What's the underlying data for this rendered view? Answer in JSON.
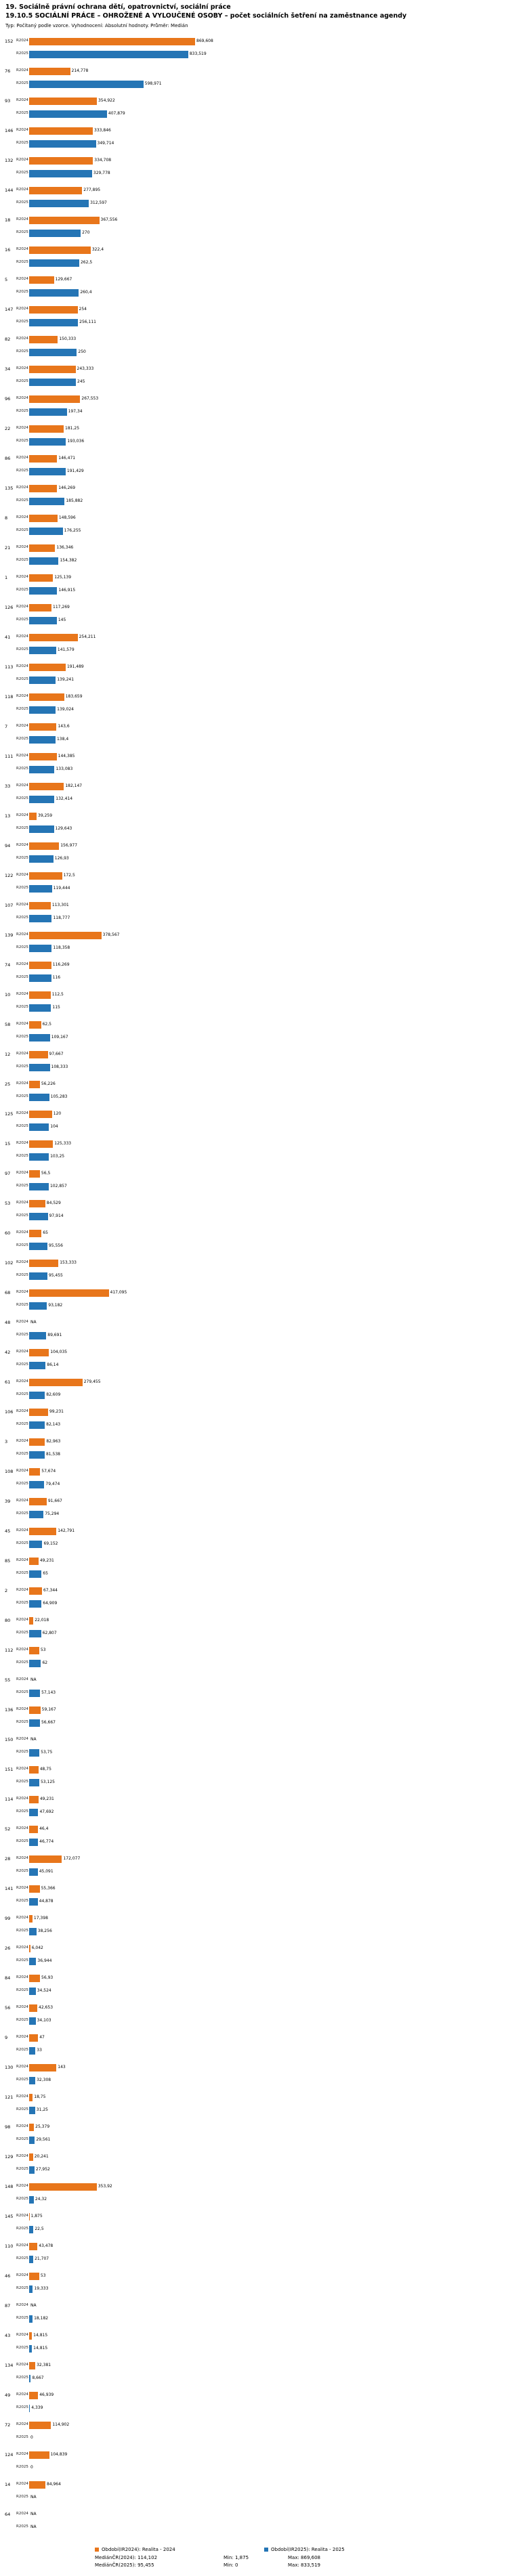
{
  "header": {
    "title": "19. Sociálně právní ochrana dětí, opatrovnictví, sociální práce",
    "subtitle": "19.10.5 SOCIÁLNÍ PRÁCE – OHROŽENÉ A VYLOUČENÉ OSOBY – počet sociálních šetření na zaměstnance agendy",
    "meta": "Typ: Počítaný podle vzorce. Vyhodnocení: Absolutní hodnoty. Průměr: Medián"
  },
  "legend": {
    "r2024": "Období(IR2024): Realita - 2024",
    "r2025": "Období(IR2025): Realita - 2025"
  },
  "footer": {
    "median_2024": "MediánČR(2024): 114,102",
    "median_2025": "MediánČR(2025): 95,455",
    "min_2024": "Min: 1,875",
    "max_2024": "Max: 869,608",
    "min_2025": "Min: 0",
    "max_2025": "Max: 833,519"
  },
  "chart_data": {
    "type": "bar",
    "orientation": "horizontal",
    "title": "19.10.5 SOCIÁLNÍ PRÁCE – OHROŽENÉ A VYLOUČENÉ OSOBY – počet sociálních šetření na zaměstnance agendy",
    "sort": "R2025 descending, NA last",
    "legend_position": "bottom",
    "xlim": [
      0,
      880
    ],
    "null_display": "NA",
    "categories": [
      "152",
      "76",
      "93",
      "146",
      "132",
      "144",
      "18",
      "16",
      "5",
      "147",
      "82",
      "34",
      "96",
      "22",
      "86",
      "135",
      "8",
      "21",
      "1",
      "126",
      "41",
      "113",
      "118",
      "7",
      "111",
      "33",
      "13",
      "94",
      "122",
      "107",
      "139",
      "74",
      "10",
      "58",
      "12",
      "25",
      "125",
      "15",
      "97",
      "53",
      "60",
      "102",
      "68",
      "48",
      "42",
      "61",
      "106",
      "3",
      "108",
      "39",
      "45",
      "85",
      "2",
      "80",
      "112",
      "55",
      "136",
      "150",
      "151",
      "114",
      "52",
      "28",
      "141",
      "99",
      "26",
      "84",
      "56",
      "9",
      "130",
      "121",
      "98",
      "129",
      "148",
      "145",
      "110",
      "46",
      "87",
      "43",
      "134",
      "49",
      "72",
      "124",
      "14",
      "64"
    ],
    "series": [
      {
        "key": "R2024",
        "name": "Období(IR2024): Realita - 2024",
        "color": "#E8761B",
        "values": [
          869.608,
          214.778,
          354.922,
          333.846,
          334.708,
          277.895,
          367.556,
          322.4,
          129.667,
          254,
          150.333,
          243.333,
          267.553,
          181.25,
          146.471,
          146.269,
          148.596,
          136.346,
          125.139,
          117.269,
          254.211,
          191.489,
          183.659,
          143.6,
          144.385,
          182.147,
          39.259,
          156.977,
          172.5,
          113.301,
          378.567,
          116.269,
          112.5,
          62.5,
          97.667,
          56.226,
          120,
          125.333,
          56.5,
          84.529,
          65,
          153.333,
          417.095,
          null,
          104.035,
          279.455,
          99.231,
          82.963,
          57.674,
          91.667,
          142.791,
          49.231,
          67.344,
          22.018,
          53,
          null,
          59.167,
          null,
          48.75,
          49.231,
          46.4,
          172.077,
          55.366,
          17.398,
          6.042,
          56.93,
          42.653,
          47,
          143,
          18.75,
          25.379,
          20.241,
          353.92,
          1.875,
          43.478,
          53,
          null,
          14.815,
          32.381,
          46.939,
          114.902,
          104.839,
          84.964,
          null
        ],
        "labels": [
          "869,608",
          "214,778",
          "354,922",
          "333,846",
          "334,708",
          "277,895",
          "367,556",
          "322,4",
          "129,667",
          "254",
          "150,333",
          "243,333",
          "267,553",
          "181,25",
          "146,471",
          "146,269",
          "148,596",
          "136,346",
          "125,139",
          "117,269",
          "254,211",
          "191,489",
          "183,659",
          "143,6",
          "144,385",
          "182,147",
          "39,259",
          "156,977",
          "172,5",
          "113,301",
          "378,567",
          "116,269",
          "112,5",
          "62,5",
          "97,667",
          "56,226",
          "120",
          "125,333",
          "56,5",
          "84,529",
          "65",
          "153,333",
          "417,095",
          "NA",
          "104,035",
          "279,455",
          "99,231",
          "82,963",
          "57,674",
          "91,667",
          "142,791",
          "49,231",
          "67,344",
          "22,018",
          "53",
          "NA",
          "59,167",
          "NA",
          "48,75",
          "49,231",
          "46,4",
          "172,077",
          "55,366",
          "17,398",
          "6,042",
          "56,93",
          "42,653",
          "47",
          "143",
          "18,75",
          "25,379",
          "20,241",
          "353,92",
          "1,875",
          "43,478",
          "53",
          "NA",
          "14,815",
          "32,381",
          "46,939",
          "114,902",
          "104,839",
          "84,964",
          "NA"
        ]
      },
      {
        "key": "R2025",
        "name": "Období(IR2025): Realita - 2025",
        "color": "#2575B5",
        "values": [
          833.519,
          598.971,
          407.879,
          349.714,
          329.778,
          312.597,
          270,
          262.5,
          260.4,
          256.111,
          250,
          245,
          197.34,
          193.036,
          191.429,
          185.882,
          176.255,
          154.382,
          146.915,
          145,
          141.579,
          139.241,
          139.024,
          138.4,
          133.083,
          132.414,
          129.643,
          126.93,
          119.444,
          118.777,
          118.358,
          116,
          115,
          109.167,
          108.333,
          105.283,
          104,
          103.25,
          102.857,
          97.914,
          95.556,
          95.455,
          93.182,
          89.691,
          86.14,
          82.609,
          82.143,
          81.538,
          79.474,
          75.294,
          69.152,
          65,
          64.909,
          62.807,
          62,
          57.143,
          56.667,
          53.75,
          53.125,
          47.692,
          46.774,
          45.091,
          44.878,
          38.256,
          36.944,
          34.524,
          34.103,
          33,
          32.308,
          31.25,
          29.561,
          27.952,
          24.32,
          22.5,
          21.707,
          19.333,
          18.182,
          14.815,
          8.667,
          4.339,
          0,
          0,
          null,
          null
        ],
        "labels": [
          "833,519",
          "598,971",
          "407,879",
          "349,714",
          "329,778",
          "312,597",
          "270",
          "262,5",
          "260,4",
          "256,111",
          "250",
          "245",
          "197,34",
          "193,036",
          "191,429",
          "185,882",
          "176,255",
          "154,382",
          "146,915",
          "145",
          "141,579",
          "139,241",
          "139,024",
          "138,4",
          "133,083",
          "132,414",
          "129,643",
          "126,93",
          "119,444",
          "118,777",
          "118,358",
          "116",
          "115",
          "109,167",
          "108,333",
          "105,283",
          "104",
          "103,25",
          "102,857",
          "97,914",
          "95,556",
          "95,455",
          "93,182",
          "89,691",
          "86,14",
          "82,609",
          "82,143",
          "81,538",
          "79,474",
          "75,294",
          "69,152",
          "65",
          "64,909",
          "62,807",
          "62",
          "57,143",
          "56,667",
          "53,75",
          "53,125",
          "47,692",
          "46,774",
          "45,091",
          "44,878",
          "38,256",
          "36,944",
          "34,524",
          "34,103",
          "33",
          "32,308",
          "31,25",
          "29,561",
          "27,952",
          "24,32",
          "22,5",
          "21,707",
          "19,333",
          "18,182",
          "14,815",
          "8,667",
          "4,339",
          "0",
          "0",
          "NA",
          "NA"
        ]
      }
    ]
  }
}
